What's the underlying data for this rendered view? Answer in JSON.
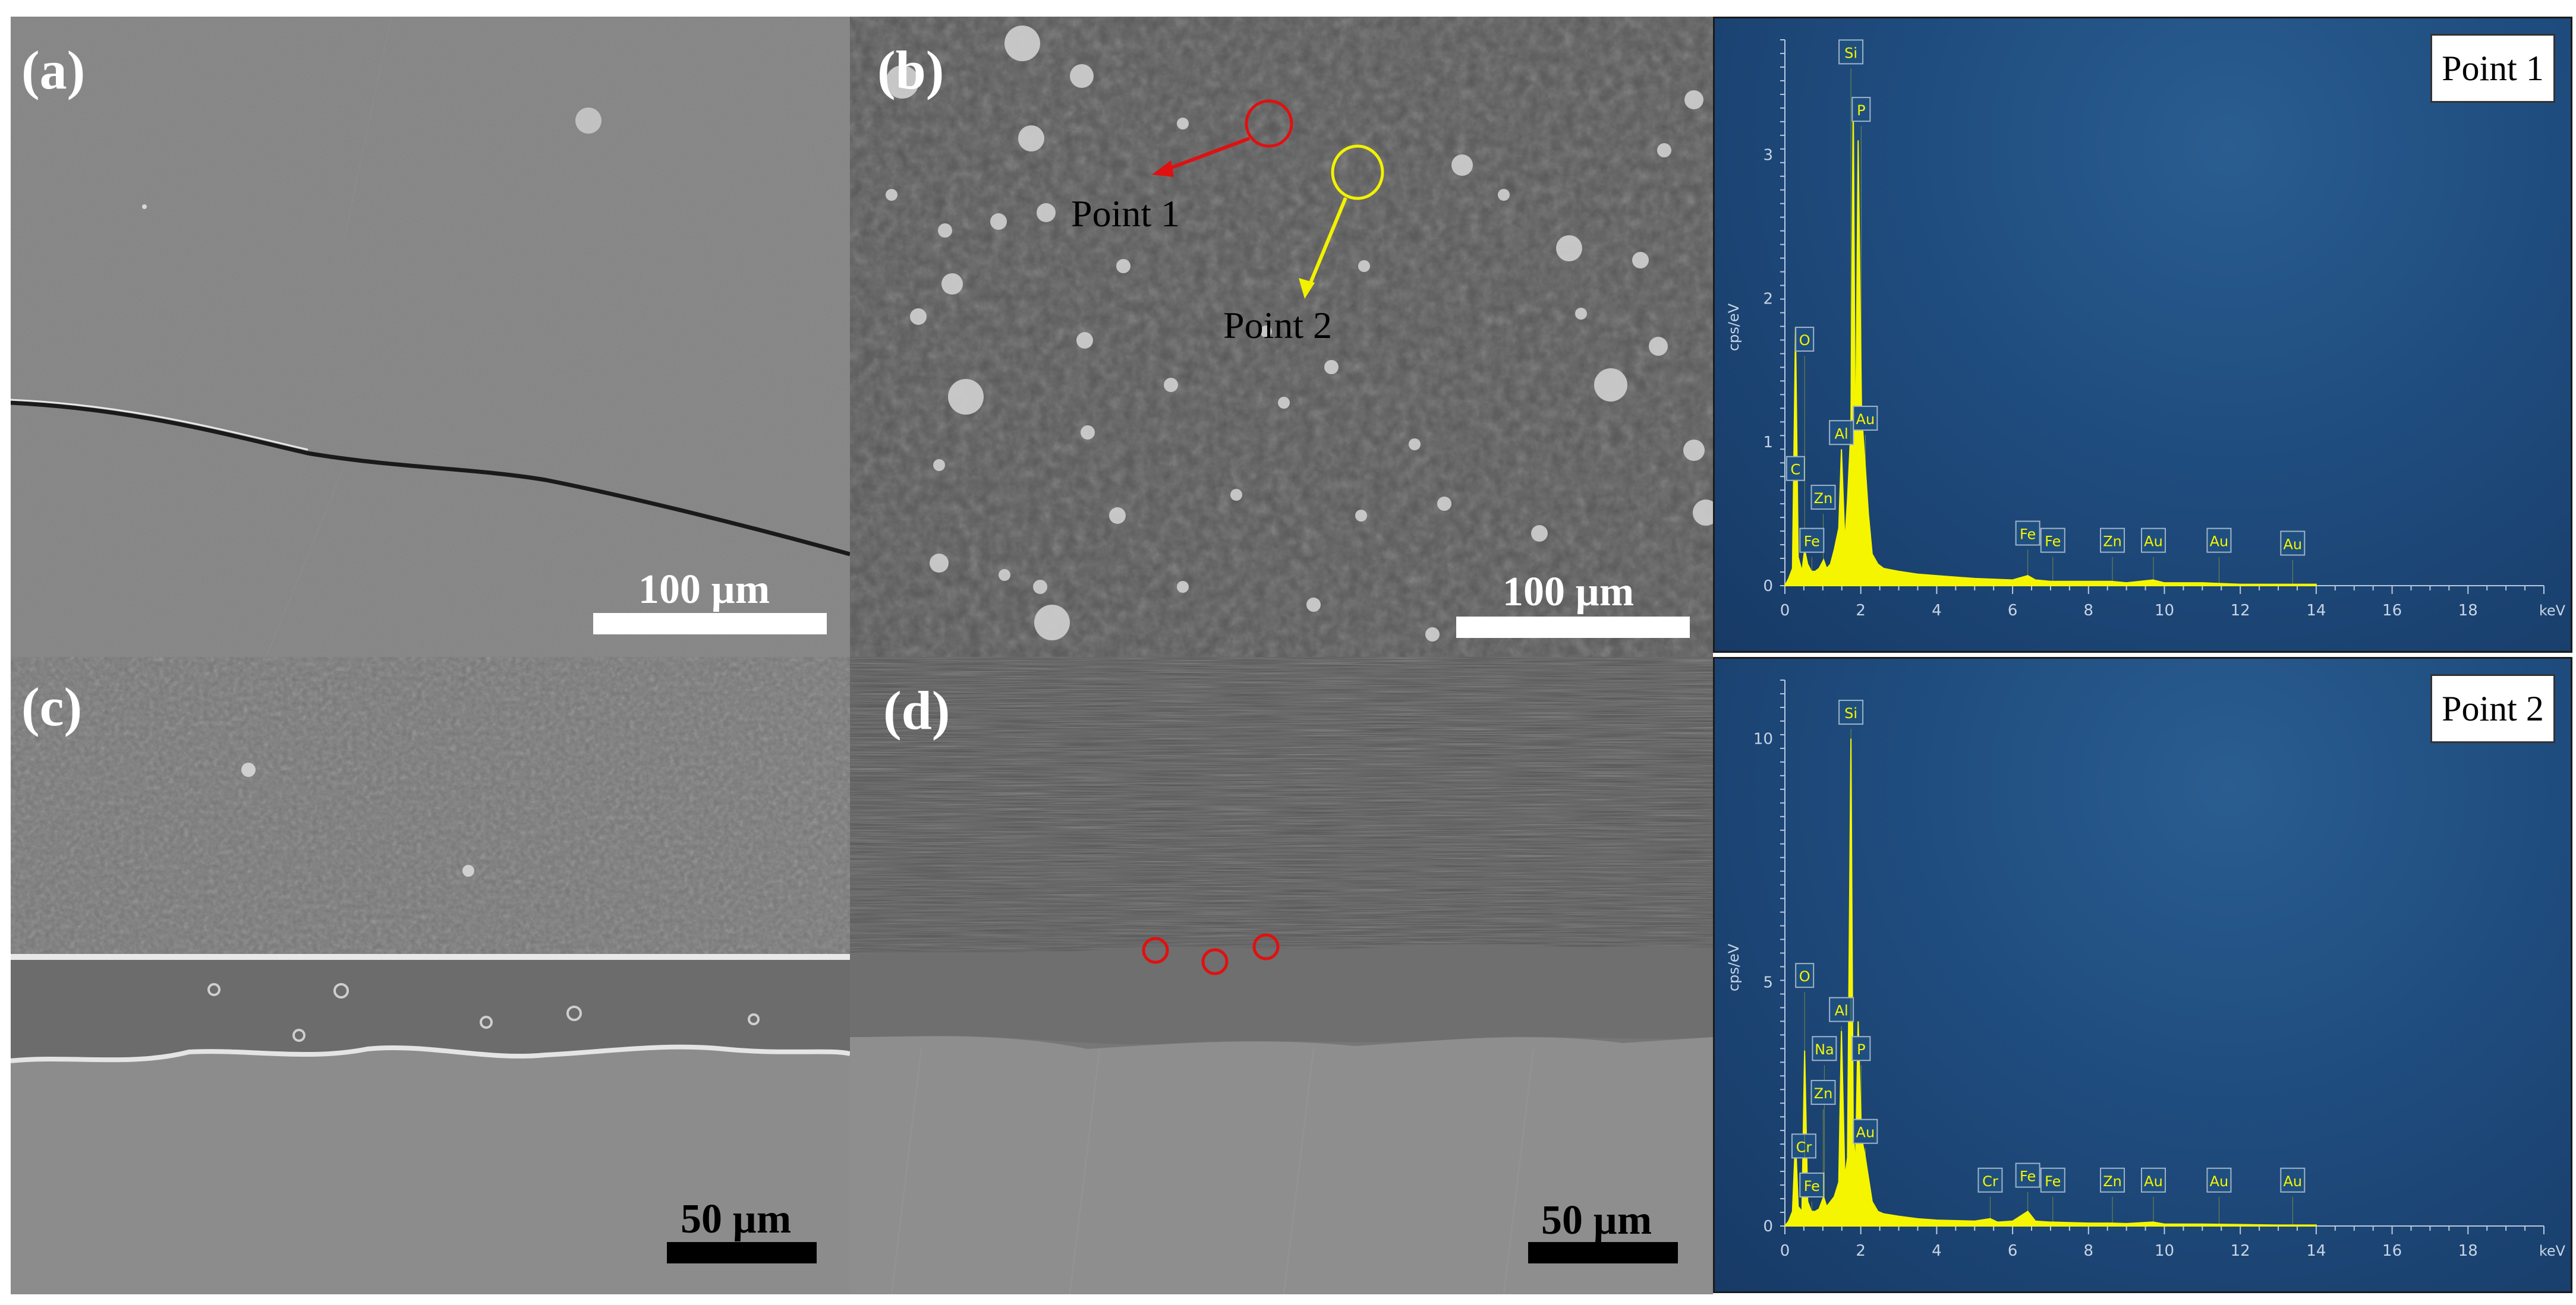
{
  "panels": {
    "a": {
      "label": "(a)",
      "scale": "100 µm"
    },
    "b": {
      "label": "(b)",
      "scale": "100 µm",
      "point1": "Point 1",
      "point2": "Point 2"
    },
    "c": {
      "label": "(c)",
      "scale": "50 µm"
    },
    "d": {
      "label": "(d)",
      "scale": "50 µm"
    }
  },
  "chart_data": [
    {
      "type": "line",
      "title": "Point 1",
      "ylabel": "cps/eV",
      "xlabel": "keV",
      "xlim": [
        0,
        20
      ],
      "ylim": [
        0,
        3.8
      ],
      "xticks": [
        "0",
        "2",
        "4",
        "6",
        "8",
        "10",
        "12",
        "14",
        "16",
        "18"
      ],
      "yticks": [
        "0",
        "1",
        "2",
        "3"
      ],
      "series": [
        {
          "x": [
            0,
            0.1,
            0.2,
            0.28,
            0.35,
            0.45,
            0.52,
            0.6,
            0.7,
            0.8,
            0.9,
            1.02,
            1.1,
            1.2,
            1.3,
            1.42,
            1.49,
            1.58,
            1.65,
            1.74,
            1.8,
            1.86,
            1.93,
            2.02,
            2.1,
            2.2,
            2.3,
            2.45,
            2.6,
            3,
            3.5,
            4,
            5,
            6,
            6.4,
            6.6,
            7,
            8,
            8.6,
            9,
            9.7,
            10,
            11,
            12,
            13,
            14
          ],
          "values": [
            0,
            0.05,
            0.12,
            1.8,
            0.2,
            0.1,
            0.25,
            0.15,
            0.1,
            0.1,
            0.12,
            0.18,
            0.12,
            0.15,
            0.25,
            0.4,
            0.95,
            0.3,
            0.6,
            1.1,
            3.4,
            0.8,
            3.1,
            1.2,
            0.9,
            0.5,
            0.22,
            0.15,
            0.12,
            0.1,
            0.08,
            0.07,
            0.05,
            0.04,
            0.07,
            0.04,
            0.03,
            0.03,
            0.03,
            0.02,
            0.04,
            0.02,
            0.02,
            0.01,
            0.01,
            0.01
          ]
        }
      ],
      "peaks": [
        {
          "label": "C",
          "x": 0.28,
          "y": 0.7
        },
        {
          "label": "O",
          "x": 0.52,
          "y": 1.6
        },
        {
          "label": "Zn",
          "x": 1.01,
          "y": 0.5
        },
        {
          "label": "Fe",
          "x": 0.71,
          "y": 0.2
        },
        {
          "label": "Al",
          "x": 1.49,
          "y": 0.95
        },
        {
          "label": "Si",
          "x": 1.74,
          "y": 3.6
        },
        {
          "label": "P",
          "x": 2.01,
          "y": 3.2
        },
        {
          "label": "Au",
          "x": 2.12,
          "y": 1.05
        },
        {
          "label": "Fe",
          "x": 6.4,
          "y": 0.25
        },
        {
          "label": "Fe",
          "x": 7.06,
          "y": 0.2
        },
        {
          "label": "Zn",
          "x": 8.63,
          "y": 0.2
        },
        {
          "label": "Au",
          "x": 9.71,
          "y": 0.2
        },
        {
          "label": "Au",
          "x": 11.44,
          "y": 0.2
        },
        {
          "label": "Au",
          "x": 13.38,
          "y": 0.18
        }
      ]
    },
    {
      "type": "line",
      "title": "Point 2",
      "ylabel": "cps/eV",
      "xlabel": "keV",
      "xlim": [
        0,
        20
      ],
      "ylim": [
        0,
        11.2
      ],
      "xticks": [
        "0",
        "2",
        "4",
        "6",
        "8",
        "10",
        "12",
        "14",
        "16",
        "18"
      ],
      "yticks": [
        "0",
        "5",
        "10"
      ],
      "series": [
        {
          "x": [
            0,
            0.1,
            0.2,
            0.28,
            0.35,
            0.45,
            0.52,
            0.6,
            0.7,
            0.8,
            0.9,
            1.02,
            1.1,
            1.2,
            1.3,
            1.42,
            1.49,
            1.58,
            1.65,
            1.74,
            1.8,
            1.86,
            1.93,
            2.02,
            2.1,
            2.2,
            2.3,
            2.45,
            2.6,
            3,
            3.5,
            4,
            5,
            5.41,
            5.6,
            6,
            6.4,
            6.6,
            7,
            8,
            8.6,
            9,
            9.7,
            10,
            11,
            12,
            13,
            14
          ],
          "values": [
            0,
            0.1,
            0.3,
            1.8,
            0.4,
            0.3,
            3.6,
            0.5,
            0.3,
            0.3,
            0.35,
            0.6,
            0.4,
            0.5,
            0.6,
            0.9,
            4.0,
            1.0,
            1.4,
            10.0,
            2.0,
            1.2,
            4.2,
            1.8,
            1.5,
            1.0,
            0.5,
            0.3,
            0.25,
            0.2,
            0.15,
            0.12,
            0.1,
            0.15,
            0.08,
            0.1,
            0.3,
            0.1,
            0.08,
            0.06,
            0.06,
            0.05,
            0.08,
            0.04,
            0.04,
            0.03,
            0.02,
            0.02
          ]
        }
      ],
      "peaks": [
        {
          "label": "Cr",
          "x": 0.5,
          "y": 1.3
        },
        {
          "label": "O",
          "x": 0.52,
          "y": 4.8
        },
        {
          "label": "Fe",
          "x": 0.71,
          "y": 0.5
        },
        {
          "label": "Na",
          "x": 1.04,
          "y": 3.3
        },
        {
          "label": "Zn",
          "x": 1.01,
          "y": 2.4
        },
        {
          "label": "Al",
          "x": 1.49,
          "y": 4.1
        },
        {
          "label": "Si",
          "x": 1.74,
          "y": 10.2
        },
        {
          "label": "P",
          "x": 2.01,
          "y": 3.3
        },
        {
          "label": "Au",
          "x": 2.12,
          "y": 1.6
        },
        {
          "label": "Cr",
          "x": 5.41,
          "y": 0.6
        },
        {
          "label": "Fe",
          "x": 6.4,
          "y": 0.7
        },
        {
          "label": "Fe",
          "x": 7.06,
          "y": 0.6
        },
        {
          "label": "Zn",
          "x": 8.63,
          "y": 0.6
        },
        {
          "label": "Au",
          "x": 9.71,
          "y": 0.6
        },
        {
          "label": "Au",
          "x": 11.44,
          "y": 0.6
        },
        {
          "label": "Au",
          "x": 13.38,
          "y": 0.6
        }
      ]
    }
  ]
}
